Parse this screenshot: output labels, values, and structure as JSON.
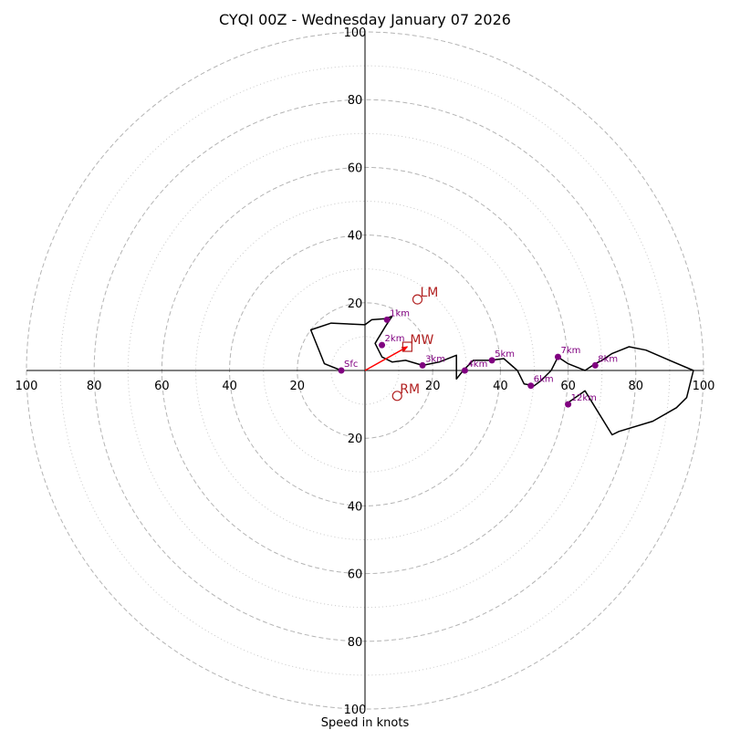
{
  "chart_data": {
    "type": "hodograph",
    "title": "CYQI 00Z - Wednesday January 07 2026",
    "xlabel": "Speed in knots",
    "units": "knots",
    "range": [
      -100,
      100
    ],
    "ring_speeds_major": [
      20,
      40,
      60,
      80,
      100
    ],
    "ring_speeds_minor": [
      10,
      30,
      50,
      70,
      90
    ],
    "x_tick_labels": [
      {
        "value": -100,
        "label": "100"
      },
      {
        "value": -80,
        "label": "80"
      },
      {
        "value": -60,
        "label": "60"
      },
      {
        "value": -40,
        "label": "40"
      },
      {
        "value": -20,
        "label": "20"
      },
      {
        "value": 20,
        "label": "20"
      },
      {
        "value": 40,
        "label": "40"
      },
      {
        "value": 60,
        "label": "60"
      },
      {
        "value": 80,
        "label": "80"
      },
      {
        "value": 100,
        "label": "100"
      }
    ],
    "y_tick_labels": [
      {
        "value": 100,
        "label": "100"
      },
      {
        "value": 80,
        "label": "80"
      },
      {
        "value": 60,
        "label": "60"
      },
      {
        "value": 40,
        "label": "40"
      },
      {
        "value": 20,
        "label": "20"
      },
      {
        "value": -20,
        "label": "20"
      },
      {
        "value": -40,
        "label": "40"
      },
      {
        "value": -60,
        "label": "60"
      },
      {
        "value": -80,
        "label": "80"
      },
      {
        "value": -100,
        "label": "100"
      }
    ],
    "grid": true,
    "trace_color": "#000000",
    "height_marker_color": "#800080",
    "motion_color": "#b22222",
    "trace": [
      [
        -7,
        0
      ],
      [
        -12,
        2
      ],
      [
        -16,
        12
      ],
      [
        -10,
        14
      ],
      [
        0,
        13.5
      ],
      [
        2,
        15
      ],
      [
        6,
        15.3
      ],
      [
        8,
        16
      ],
      [
        6,
        13
      ],
      [
        3,
        8
      ],
      [
        5,
        4
      ],
      [
        8,
        2.5
      ],
      [
        12,
        3
      ],
      [
        17,
        1.5
      ],
      [
        22,
        2.5
      ],
      [
        27,
        4.5
      ],
      [
        27,
        -2.5
      ],
      [
        29,
        0
      ],
      [
        30,
        1
      ],
      [
        32,
        3
      ],
      [
        37,
        3
      ],
      [
        41,
        3.5
      ],
      [
        45,
        0
      ],
      [
        47,
        -4
      ],
      [
        50,
        -4.5
      ],
      [
        52,
        -3
      ],
      [
        55,
        0
      ],
      [
        57,
        4
      ],
      [
        60,
        2
      ],
      [
        65,
        0
      ],
      [
        68,
        2
      ],
      [
        70,
        3
      ],
      [
        73,
        5
      ],
      [
        78,
        7
      ],
      [
        83,
        6
      ],
      [
        90,
        3
      ],
      [
        97,
        0
      ],
      [
        95,
        -8
      ],
      [
        92,
        -11
      ],
      [
        85,
        -15
      ],
      [
        75,
        -18
      ],
      [
        73,
        -19
      ],
      [
        65,
        -6
      ],
      [
        60,
        -9.5
      ]
    ],
    "height_markers": [
      {
        "label": "Sfc",
        "u": -7,
        "v": 0
      },
      {
        "label": "1km",
        "u": 6.5,
        "v": 15
      },
      {
        "label": "2km",
        "u": 5,
        "v": 7.5
      },
      {
        "label": "3km",
        "u": 17,
        "v": 1.5
      },
      {
        "label": "4km",
        "u": 29.5,
        "v": 0
      },
      {
        "label": "5km",
        "u": 37.5,
        "v": 3
      },
      {
        "label": "6km",
        "u": 49,
        "v": -4.5
      },
      {
        "label": "7km",
        "u": 57,
        "v": 4
      },
      {
        "label": "8km",
        "u": 68,
        "v": 1.5
      },
      {
        "label": "12km",
        "u": 60,
        "v": -10
      }
    ],
    "storm_motion": [
      {
        "label": "LM",
        "u": 15.5,
        "v": 21,
        "marker": "circle"
      },
      {
        "label": "MW",
        "u": 12.5,
        "v": 7,
        "marker": "square"
      },
      {
        "label": "RM",
        "u": 9.5,
        "v": -7.5,
        "marker": "circle"
      }
    ],
    "mean_wind_vector": {
      "u": 12.5,
      "v": 7,
      "color": "#ff0000"
    }
  }
}
